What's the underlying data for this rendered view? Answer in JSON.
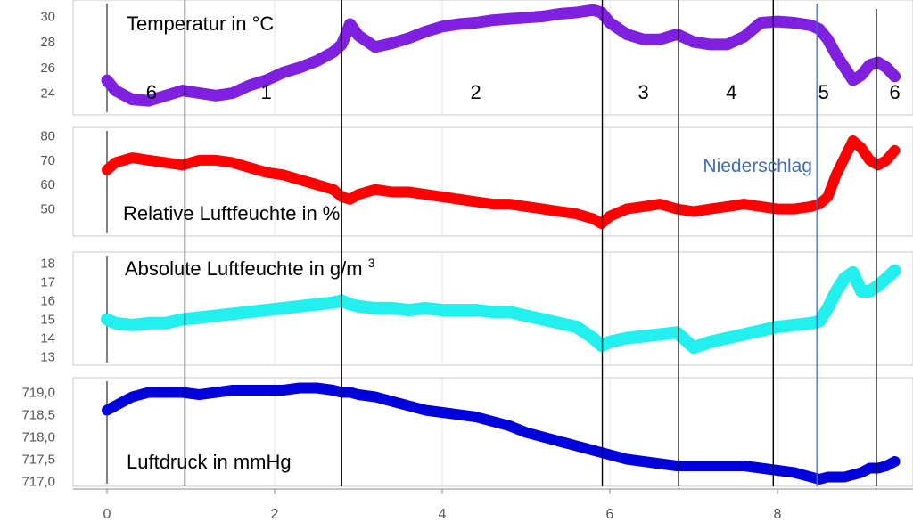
{
  "chart_data": [
    {
      "type": "line",
      "title": "Temperatur in °C",
      "ylim": [
        22.5,
        31
      ],
      "yticks": [
        "24",
        "26",
        "28",
        "30"
      ],
      "xlim": [
        0,
        9.5
      ],
      "color": "#7f1fe0",
      "x": [
        0,
        0.1,
        0.3,
        0.5,
        0.7,
        0.9,
        1.1,
        1.3,
        1.5,
        1.7,
        1.9,
        2.1,
        2.3,
        2.5,
        2.7,
        2.8,
        2.9,
        3.0,
        3.2,
        3.4,
        3.6,
        3.8,
        4.0,
        4.2,
        4.4,
        4.6,
        4.8,
        5.0,
        5.2,
        5.4,
        5.6,
        5.8,
        5.9,
        6.0,
        6.2,
        6.4,
        6.6,
        6.8,
        7.0,
        7.2,
        7.4,
        7.6,
        7.8,
        8.0,
        8.2,
        8.4,
        8.5,
        8.6,
        8.7,
        8.8,
        8.9,
        9.0,
        9.1,
        9.2,
        9.3,
        9.4
      ],
      "y": [
        25.0,
        24.2,
        23.5,
        23.4,
        23.8,
        24.2,
        24.0,
        23.8,
        24.0,
        24.6,
        25.0,
        25.6,
        26.0,
        26.5,
        27.2,
        27.8,
        29.4,
        28.5,
        27.6,
        27.9,
        28.3,
        28.8,
        29.2,
        29.4,
        29.5,
        29.7,
        29.8,
        29.9,
        30.0,
        30.2,
        30.3,
        30.5,
        30.3,
        29.5,
        28.6,
        28.2,
        28.2,
        28.6,
        28.0,
        27.8,
        27.8,
        28.4,
        29.5,
        29.6,
        29.5,
        29.3,
        29.0,
        28.2,
        27.0,
        26.0,
        25.0,
        25.4,
        26.2,
        26.4,
        26.0,
        25.3
      ]
    },
    {
      "type": "line",
      "title": "Relative Luftfeuchte in %",
      "ylim": [
        40,
        82
      ],
      "yticks": [
        "50",
        "60",
        "70",
        "80"
      ],
      "xlim": [
        0,
        9.5
      ],
      "color": "#ff0000",
      "annotation": "Niederschlag",
      "x": [
        0,
        0.1,
        0.3,
        0.5,
        0.7,
        0.9,
        1.1,
        1.3,
        1.5,
        1.7,
        1.9,
        2.1,
        2.3,
        2.5,
        2.7,
        2.8,
        2.9,
        3.0,
        3.2,
        3.4,
        3.6,
        3.8,
        4.0,
        4.2,
        4.4,
        4.6,
        4.8,
        5.0,
        5.2,
        5.4,
        5.6,
        5.8,
        5.9,
        6.0,
        6.2,
        6.4,
        6.6,
        6.8,
        7.0,
        7.2,
        7.4,
        7.6,
        7.8,
        8.0,
        8.2,
        8.4,
        8.5,
        8.6,
        8.7,
        8.8,
        8.9,
        9.0,
        9.1,
        9.2,
        9.3,
        9.4
      ],
      "y": [
        66,
        69,
        71,
        70,
        69,
        68,
        70,
        70,
        69,
        67,
        65,
        64,
        62,
        60,
        58,
        55,
        54,
        56,
        58,
        57,
        57,
        56,
        55,
        54,
        53,
        52,
        52,
        51,
        50,
        49,
        48,
        46,
        44,
        47,
        50,
        51,
        52,
        50,
        49,
        50,
        51,
        52,
        51,
        50,
        50,
        51,
        52,
        55,
        64,
        71,
        78,
        75,
        70,
        68,
        70,
        74
      ]
    },
    {
      "type": "line",
      "title": "Absolute Luftfeuchte in g/m³",
      "ylim": [
        12.7,
        18.4
      ],
      "yticks": [
        "13",
        "14",
        "15",
        "16",
        "17",
        "18"
      ],
      "xlim": [
        0,
        9.5
      ],
      "color": "#22f0ef",
      "x": [
        0,
        0.1,
        0.3,
        0.5,
        0.7,
        0.9,
        1.1,
        1.3,
        1.5,
        1.7,
        1.9,
        2.1,
        2.3,
        2.5,
        2.7,
        2.8,
        2.9,
        3.0,
        3.2,
        3.4,
        3.6,
        3.8,
        4.0,
        4.2,
        4.4,
        4.6,
        4.8,
        5.0,
        5.2,
        5.4,
        5.6,
        5.8,
        5.9,
        6.0,
        6.2,
        6.4,
        6.6,
        6.8,
        7.0,
        7.2,
        7.4,
        7.6,
        7.8,
        8.0,
        8.2,
        8.4,
        8.5,
        8.6,
        8.7,
        8.8,
        8.9,
        9.0,
        9.1,
        9.2,
        9.3,
        9.4
      ],
      "y": [
        15.0,
        14.8,
        14.7,
        14.8,
        14.8,
        15.0,
        15.1,
        15.2,
        15.3,
        15.4,
        15.5,
        15.6,
        15.7,
        15.8,
        15.9,
        16.0,
        15.8,
        15.7,
        15.6,
        15.6,
        15.5,
        15.6,
        15.5,
        15.5,
        15.5,
        15.4,
        15.4,
        15.2,
        15.0,
        14.8,
        14.6,
        14.0,
        13.6,
        13.8,
        14.0,
        14.1,
        14.2,
        14.3,
        13.5,
        13.8,
        14.0,
        14.2,
        14.4,
        14.6,
        14.7,
        14.8,
        14.9,
        15.6,
        16.5,
        17.2,
        17.5,
        16.5,
        16.5,
        16.8,
        17.2,
        17.6
      ]
    },
    {
      "type": "line",
      "title": "Luftdruck in mmHg",
      "ylim": [
        716.95,
        719.25
      ],
      "yticks": [
        "719,0",
        "718,5",
        "718,0",
        "717,5",
        "717,0"
      ],
      "xlim": [
        0,
        9.5
      ],
      "xticks": [
        "0",
        "2",
        "4",
        "6",
        "8"
      ],
      "color": "#0000dd",
      "x": [
        0,
        0.1,
        0.3,
        0.5,
        0.7,
        0.9,
        1.1,
        1.3,
        1.5,
        1.7,
        1.9,
        2.1,
        2.3,
        2.5,
        2.7,
        2.8,
        2.9,
        3.0,
        3.2,
        3.4,
        3.6,
        3.8,
        4.0,
        4.2,
        4.4,
        4.6,
        4.8,
        5.0,
        5.2,
        5.4,
        5.6,
        5.8,
        5.9,
        6.0,
        6.2,
        6.4,
        6.6,
        6.8,
        7.0,
        7.2,
        7.4,
        7.6,
        7.8,
        8.0,
        8.2,
        8.4,
        8.5,
        8.6,
        8.7,
        8.8,
        8.9,
        9.0,
        9.1,
        9.2,
        9.3,
        9.4
      ],
      "y": [
        718.6,
        718.7,
        718.9,
        719.0,
        719.0,
        719.0,
        718.95,
        719.0,
        719.05,
        719.05,
        719.05,
        719.05,
        719.1,
        719.1,
        719.05,
        719.0,
        719.0,
        718.95,
        718.9,
        718.8,
        718.7,
        718.6,
        718.55,
        718.5,
        718.45,
        718.35,
        718.25,
        718.1,
        718.0,
        717.9,
        717.8,
        717.7,
        717.65,
        717.6,
        717.5,
        717.45,
        717.4,
        717.35,
        717.35,
        717.35,
        717.35,
        717.35,
        717.3,
        717.25,
        717.2,
        717.1,
        717.05,
        717.1,
        717.1,
        717.1,
        717.15,
        717.2,
        717.3,
        717.3,
        717.35,
        717.45
      ]
    }
  ],
  "phase_labels": [
    "6",
    "1",
    "2",
    "3",
    "4",
    "5",
    "6"
  ],
  "phase_dividers": [
    0.93,
    2.8,
    5.91,
    6.82,
    7.95
  ],
  "rain_marker": 8.47
}
